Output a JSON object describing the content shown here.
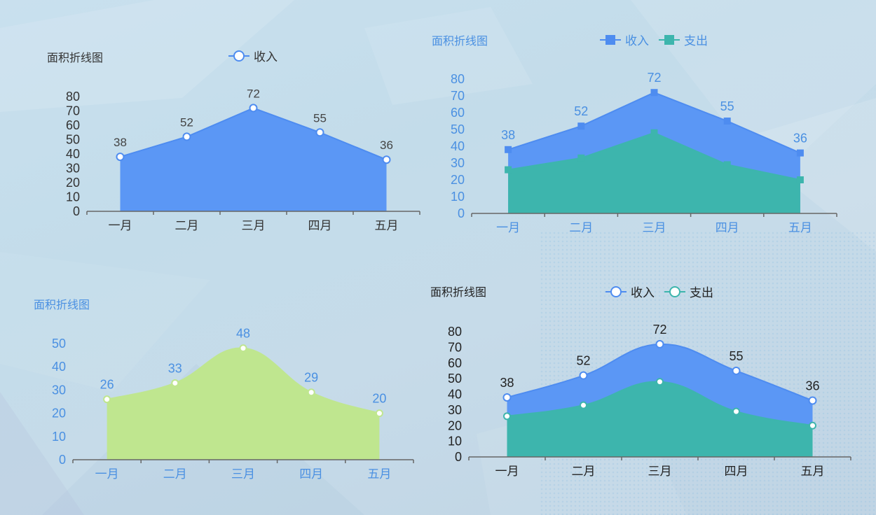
{
  "colors": {
    "blue": "#5b97f5",
    "blue_line": "#4e8cf0",
    "teal": "#3db5ad",
    "green_fill": "#bfe68f",
    "dark_text": "#333333",
    "blue_text": "#4a90e2",
    "axis": "#666666"
  },
  "charts": {
    "c1": {
      "title": "面积折线图",
      "legend": [
        {
          "label": "收入",
          "marker": "circle"
        }
      ]
    },
    "c2": {
      "title": "面积折线图",
      "legend": [
        {
          "label": "收入",
          "marker": "square"
        },
        {
          "label": "支出",
          "marker": "square"
        }
      ]
    },
    "c3": {
      "title": "面积折线图",
      "legend": []
    },
    "c4": {
      "title": "面积折线图",
      "legend": [
        {
          "label": "收入",
          "marker": "circle"
        },
        {
          "label": "支出",
          "marker": "circle"
        }
      ]
    }
  },
  "chart_data": [
    {
      "type": "area",
      "title": "面积折线图",
      "categories": [
        "一月",
        "二月",
        "三月",
        "四月",
        "五月"
      ],
      "series": [
        {
          "name": "收入",
          "values": [
            38,
            52,
            72,
            55,
            36
          ]
        }
      ],
      "ylim": [
        0,
        80
      ],
      "yticks": [
        0,
        10,
        20,
        30,
        40,
        50,
        60,
        70,
        80
      ],
      "smooth": false,
      "legend": "top-center",
      "grid": false
    },
    {
      "type": "area",
      "title": "面积折线图",
      "categories": [
        "一月",
        "二月",
        "三月",
        "四月",
        "五月"
      ],
      "series": [
        {
          "name": "收入",
          "values": [
            38,
            52,
            72,
            55,
            36
          ]
        },
        {
          "name": "支出",
          "values": [
            26,
            33,
            48,
            29,
            20
          ]
        }
      ],
      "ylim": [
        0,
        80
      ],
      "yticks": [
        0,
        10,
        20,
        30,
        40,
        50,
        60,
        70,
        80
      ],
      "smooth": false,
      "legend": "top-center",
      "grid": false
    },
    {
      "type": "area",
      "title": "面积折线图",
      "categories": [
        "一月",
        "二月",
        "三月",
        "四月",
        "五月"
      ],
      "series": [
        {
          "values": [
            26,
            33,
            48,
            29,
            20
          ]
        }
      ],
      "ylim": [
        0,
        50
      ],
      "yticks": [
        0,
        10,
        20,
        30,
        40,
        50
      ],
      "smooth": true,
      "legend": "none",
      "grid": false
    },
    {
      "type": "area",
      "title": "面积折线图",
      "categories": [
        "一月",
        "二月",
        "三月",
        "四月",
        "五月"
      ],
      "series": [
        {
          "name": "收入",
          "values": [
            38,
            52,
            72,
            55,
            36
          ]
        },
        {
          "name": "支出",
          "values": [
            26,
            33,
            48,
            29,
            20
          ]
        }
      ],
      "ylim": [
        0,
        80
      ],
      "yticks": [
        0,
        10,
        20,
        30,
        40,
        50,
        60,
        70,
        80
      ],
      "smooth": true,
      "legend": "top-center",
      "grid": false
    }
  ]
}
